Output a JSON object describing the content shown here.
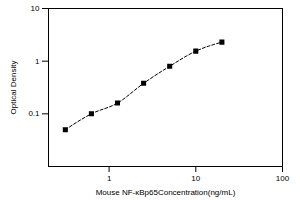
{
  "chart_data": {
    "type": "scatter",
    "x_label": "Mouse NF-κBp65Concentration(ng/mL)",
    "y_label": "Optical Density",
    "x": [
      0.3125,
      0.625,
      1.25,
      2.5,
      5,
      10,
      20
    ],
    "values": [
      0.05,
      0.1,
      0.16,
      0.38,
      0.8,
      1.55,
      2.3
    ],
    "color": "#000000",
    "marker": "square",
    "line_style": "dashed",
    "log": true,
    "xlim": [
      0.2,
      100
    ],
    "ylim": [
      0.01,
      10
    ],
    "xticks": [
      1,
      10,
      100
    ],
    "yticks": [
      0.1,
      1,
      10
    ]
  }
}
